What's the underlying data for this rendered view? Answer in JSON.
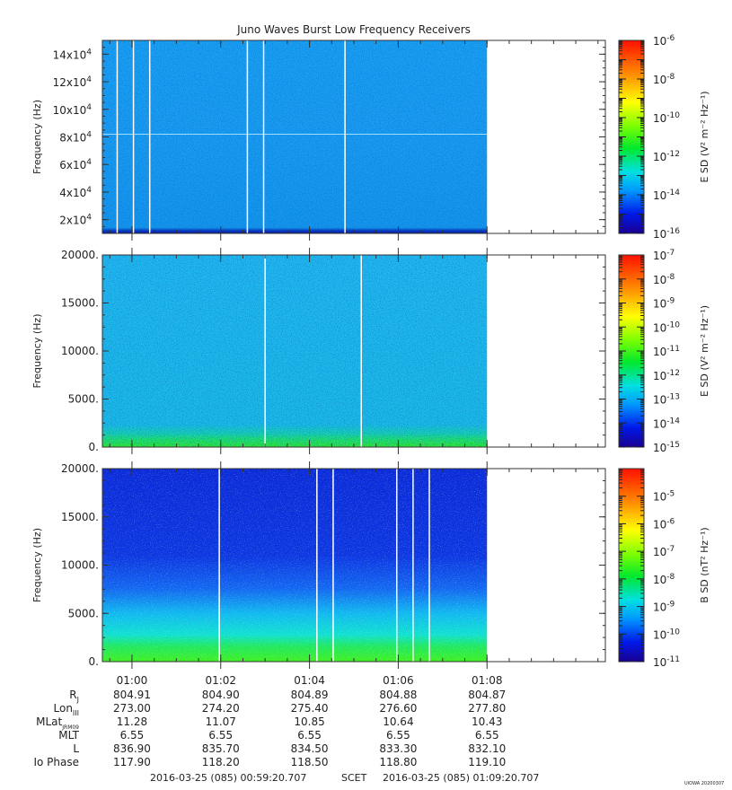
{
  "chart_data": [
    {
      "type": "heatmap",
      "title": "Juno Waves Burst Low Frequency Receivers",
      "ylabel": "Frequency (Hz)",
      "ylim": [
        10000,
        150000
      ],
      "yticks": [
        20000,
        40000,
        60000,
        80000,
        100000,
        120000,
        140000
      ],
      "ytick_labels": [
        {
          "m": "2x10",
          "e": "4"
        },
        {
          "m": "4x10",
          "e": "4"
        },
        {
          "m": "6x10",
          "e": "4"
        },
        {
          "m": "8x10",
          "e": "4"
        },
        {
          "m": "10x10",
          "e": "4"
        },
        {
          "m": "12x10",
          "e": "4"
        },
        {
          "m": "14x10",
          "e": "4"
        }
      ],
      "data_xrange": [
        "00:59:20",
        "01:08:00"
      ],
      "data_gaps": [
        "00:59:40",
        "01:00:02",
        "01:00:24",
        "01:02:36",
        "01:02:58",
        "01:04:48"
      ],
      "colorbar": {
        "label": "E SD",
        "units": "(V² m⁻² Hz⁻¹)",
        "scale": "log",
        "range": [
          1e-16,
          1e-06
        ],
        "tick_labels": [
          {
            "m": "10",
            "e": "-16"
          },
          {
            "m": "10",
            "e": "-14"
          },
          {
            "m": "10",
            "e": "-12"
          },
          {
            "m": "10",
            "e": "-10"
          },
          {
            "m": "10",
            "e": "-8"
          },
          {
            "m": "10",
            "e": "-6"
          }
        ]
      },
      "series": [
        {
          "values": {
            "typical": "1e-14 to 1e-13",
            "low_edge": "1e-15"
          }
        }
      ]
    },
    {
      "type": "heatmap",
      "ylabel": "Frequency (Hz)",
      "ylim": [
        0,
        20000
      ],
      "yticks": [
        0,
        5000,
        10000,
        15000,
        20000
      ],
      "ytick_labels": [
        "0.",
        "5000.",
        "10000.",
        "15000.",
        "20000."
      ],
      "data_xrange": [
        "00:59:20",
        "01:08:00"
      ],
      "data_gaps": [
        "01:03:00",
        "01:05:10"
      ],
      "colorbar": {
        "label": "E SD",
        "units": "(V² m⁻² Hz⁻¹)",
        "scale": "log",
        "range": [
          1e-15,
          1e-07
        ],
        "tick_labels": [
          {
            "m": "10",
            "e": "-15"
          },
          {
            "m": "10",
            "e": "-14"
          },
          {
            "m": "10",
            "e": "-13"
          },
          {
            "m": "10",
            "e": "-12"
          },
          {
            "m": "10",
            "e": "-11"
          },
          {
            "m": "10",
            "e": "-10"
          },
          {
            "m": "10",
            "e": "-9"
          },
          {
            "m": "10",
            "e": "-8"
          },
          {
            "m": "10",
            "e": "-7"
          }
        ]
      },
      "series": [
        {
          "values": {
            "typical": "1e-13",
            "below_1000Hz": "1e-12 to 1e-11"
          }
        }
      ]
    },
    {
      "type": "heatmap",
      "ylabel": "Frequency (Hz)",
      "ylim": [
        0,
        20000
      ],
      "yticks": [
        0,
        5000,
        10000,
        15000,
        20000
      ],
      "ytick_labels": [
        "0.",
        "5000.",
        "10000.",
        "15000.",
        "20000."
      ],
      "data_xrange": [
        "00:59:20",
        "01:08:00"
      ],
      "data_gaps": [
        "01:01:58",
        "01:04:10",
        "01:04:32",
        "01:05:58",
        "01:06:20",
        "01:06:42"
      ],
      "colorbar": {
        "label": "B SD",
        "units": "(nT² Hz⁻¹)",
        "scale": "log",
        "range": [
          1e-11,
          0.0001
        ],
        "tick_labels": [
          {
            "m": "10",
            "e": "-11"
          },
          {
            "m": "10",
            "e": "-10"
          },
          {
            "m": "10",
            "e": "-9"
          },
          {
            "m": "10",
            "e": "-8"
          },
          {
            "m": "10",
            "e": "-7"
          },
          {
            "m": "10",
            "e": "-6"
          },
          {
            "m": "10",
            "e": "-5"
          }
        ]
      },
      "series": [
        {
          "values": {
            "above_8000Hz": "1e-11 to 1e-10",
            "below_2000Hz": "1e-8"
          }
        }
      ]
    }
  ],
  "time_axis": {
    "range": [
      "00:59:20",
      "01:10:40"
    ],
    "major_ticks": [
      "01:00",
      "01:02",
      "01:04",
      "01:06",
      "01:08"
    ]
  },
  "ephemeris": {
    "rows": [
      {
        "label": "R",
        "sub": "J",
        "values": [
          "804.91",
          "804.90",
          "804.89",
          "804.88",
          "804.87"
        ]
      },
      {
        "label": "Lon",
        "sub": "III",
        "values": [
          "273.00",
          "274.20",
          "275.40",
          "276.60",
          "277.80"
        ]
      },
      {
        "label": "MLat",
        "sub": "JRM09",
        "values": [
          "11.28",
          "11.07",
          "10.85",
          "10.64",
          "10.43"
        ]
      },
      {
        "label": "MLT",
        "sub": "",
        "values": [
          "6.55",
          "6.55",
          "6.55",
          "6.55",
          "6.55"
        ]
      },
      {
        "label": "L",
        "sub": "",
        "values": [
          "836.90",
          "835.70",
          "834.50",
          "833.30",
          "832.10"
        ]
      },
      {
        "label": "Io Phase",
        "sub": "",
        "values": [
          "117.90",
          "118.20",
          "118.50",
          "118.80",
          "119.10"
        ]
      }
    ]
  },
  "footer": {
    "start": "2016-03-25 (085) 00:59:20.707",
    "scet": "SCET",
    "end": "2016-03-25 (085) 01:09:20.707",
    "stamp": "UIOWA 20200307"
  }
}
